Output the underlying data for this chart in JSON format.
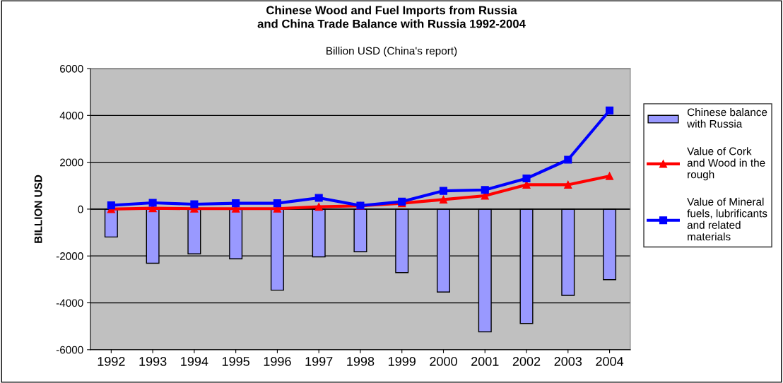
{
  "chart_data": {
    "type": "bar",
    "title": "Chinese Wood and Fuel Imports from Russia\nand China Trade Balance with Russia 1992-2004",
    "subtitle": "Billion USD (China's report)",
    "ylabel": "BILLION USD",
    "categories": [
      "1992",
      "1993",
      "1994",
      "1995",
      "1996",
      "1997",
      "1998",
      "1999",
      "2000",
      "2001",
      "2002",
      "2003",
      "2004"
    ],
    "series": [
      {
        "name": "Chinese balance\nwith Russia",
        "color": "#9999ff",
        "values": [
          -1190,
          -2310,
          -1910,
          -2120,
          -3460,
          -2040,
          -1820,
          -2710,
          -3540,
          -5240,
          -4880,
          -3680,
          -3010
        ]
      },
      {
        "name": "Value of Cork\nand Wood in the\nrough",
        "type": "line",
        "color": "#ff0000",
        "marker": "triangle",
        "values": [
          0,
          40,
          20,
          20,
          20,
          100,
          140,
          250,
          410,
          570,
          1040,
          1040,
          1410
        ]
      },
      {
        "name": "Value of Mineral\nfuels, lubrificants\nand related\nmaterials",
        "type": "line",
        "color": "#0000ff",
        "marker": "square",
        "values": [
          160,
          270,
          210,
          250,
          250,
          480,
          150,
          320,
          780,
          820,
          1310,
          2110,
          4210
        ]
      }
    ],
    "ylim": [
      -6000,
      6000
    ],
    "yticks": [
      -6000,
      -4000,
      -2000,
      0,
      2000,
      4000,
      6000
    ],
    "grid": "y",
    "legend": "right"
  }
}
